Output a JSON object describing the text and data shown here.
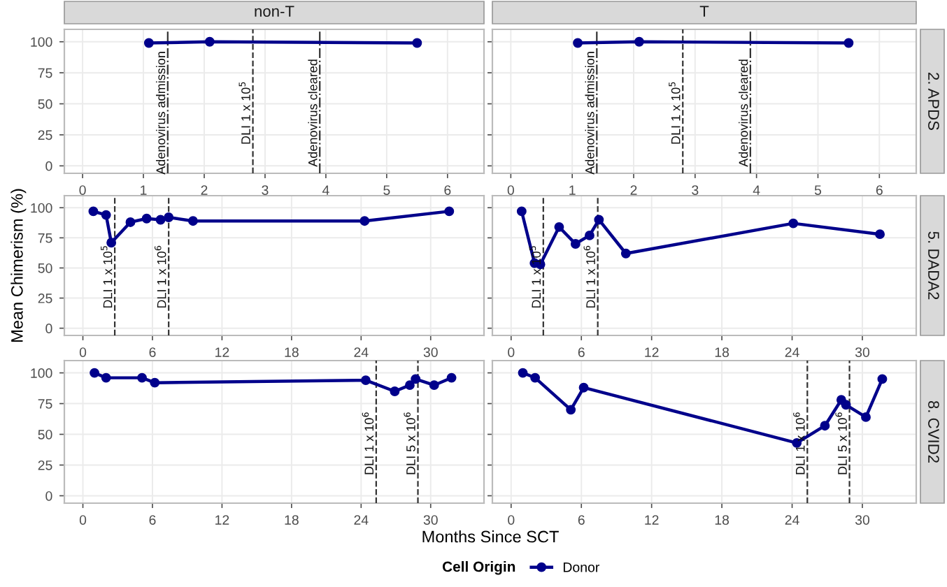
{
  "chart_data": [
    {
      "type": "line",
      "title": "non-T",
      "x": [
        1.09,
        2.09,
        5.5
      ],
      "series": [
        {
          "color": "#00008b",
          "values": [
            99,
            100,
            99
          ]
        }
      ],
      "xlim": [
        -0.3,
        6.6
      ],
      "xticks": [
        0,
        1,
        2,
        3,
        4,
        5,
        6
      ],
      "ylim": [
        -6,
        110
      ],
      "yticks": [
        0,
        25,
        50,
        75,
        100
      ],
      "grid": true,
      "marker": "circle",
      "line_style": "solid",
      "ref_lines": [
        {
          "axis": "x",
          "value": 1.4,
          "label": "Adenovirus admission",
          "line_style": "dashdot"
        },
        {
          "axis": "x",
          "value": 2.8,
          "label": "DLI 1 x 10$^{5}$",
          "line_style": "dashed"
        },
        {
          "axis": "x",
          "value": 3.9,
          "label": "Adenovirus cleared",
          "line_style": "dashdot"
        }
      ]
    },
    {
      "type": "line",
      "title": "T",
      "annotations": [
        "2. APDS"
      ],
      "x": [
        1.09,
        2.09,
        5.5
      ],
      "series": [
        {
          "color": "#00008b",
          "values": [
            99,
            100,
            99
          ]
        }
      ],
      "xlim": [
        -0.3,
        6.6
      ],
      "xticks": [
        0,
        1,
        2,
        3,
        4,
        5,
        6
      ],
      "ylim": [
        -6,
        110
      ],
      "yticks": [
        0,
        25,
        50,
        75,
        100
      ],
      "grid": true,
      "marker": "circle",
      "line_style": "solid",
      "tick_labels": "x",
      "ref_lines": [
        {
          "axis": "x",
          "value": 1.4,
          "label": "Adenovirus admission",
          "line_style": "dashdot"
        },
        {
          "axis": "x",
          "value": 2.8,
          "label": "DLI 1 x 10$^{5}$",
          "line_style": "dashed"
        },
        {
          "axis": "x",
          "value": 3.9,
          "label": "Adenovirus cleared",
          "line_style": "dashdot"
        }
      ]
    },
    {
      "type": "line",
      "ylabel": "Mean Chimerism (%)",
      "x": [
        0.9,
        2.0,
        2.45,
        4.1,
        5.5,
        6.7,
        7.4,
        9.5,
        24.3,
        31.6
      ],
      "series": [
        {
          "color": "#00008b",
          "values": [
            97,
            94,
            71,
            88,
            91,
            90,
            92,
            89,
            89,
            97
          ]
        }
      ],
      "xlim": [
        -1.6,
        34.6
      ],
      "xticks": [
        0,
        6,
        12,
        18,
        24,
        30
      ],
      "ylim": [
        -6,
        110
      ],
      "yticks": [
        0,
        25,
        50,
        75,
        100
      ],
      "grid": true,
      "marker": "circle",
      "line_style": "solid",
      "ref_lines": [
        {
          "axis": "x",
          "value": 2.75,
          "label": "DLI 1 x 10$^{5}$",
          "line_style": "dashed"
        },
        {
          "axis": "x",
          "value": 7.4,
          "label": "DLI 1 x 10$^{6}$",
          "line_style": "dashed"
        }
      ]
    },
    {
      "type": "line",
      "annotations": [
        "5. DADA2"
      ],
      "x": [
        0.9,
        2.0,
        2.5,
        4.1,
        5.5,
        6.7,
        7.5,
        9.8,
        24.1,
        31.5
      ],
      "series": [
        {
          "color": "#00008b",
          "values": [
            97,
            54,
            53,
            84,
            70,
            77,
            90,
            62,
            87,
            78
          ]
        }
      ],
      "xlim": [
        -1.6,
        34.6
      ],
      "xticks": [
        0,
        6,
        12,
        18,
        24,
        30
      ],
      "ylim": [
        -6,
        110
      ],
      "yticks": [
        0,
        25,
        50,
        75,
        100
      ],
      "grid": true,
      "marker": "circle",
      "line_style": "solid",
      "tick_labels": "x",
      "ref_lines": [
        {
          "axis": "x",
          "value": 2.75,
          "label": "DLI 1 x 10$^{5}$",
          "line_style": "dashed"
        },
        {
          "axis": "x",
          "value": 7.4,
          "label": "DLI 1 x 10$^{6}$",
          "line_style": "dashed"
        }
      ]
    },
    {
      "type": "line",
      "xlabel": "Months Since SCT",
      "legend_title": "Cell Origin",
      "legend": "bottom",
      "x": [
        1.0,
        2.0,
        5.1,
        6.2,
        24.4,
        26.9,
        28.2,
        28.7,
        30.3,
        31.8
      ],
      "series": [
        {
          "name": "Donor",
          "color": "#00008b",
          "values": [
            100,
            96,
            96,
            92,
            94,
            85,
            90,
            95,
            90,
            96
          ]
        }
      ],
      "xlim": [
        -1.6,
        34.6
      ],
      "xticks": [
        0,
        6,
        12,
        18,
        24,
        30
      ],
      "ylim": [
        -6,
        110
      ],
      "yticks": [
        0,
        25,
        50,
        75,
        100
      ],
      "grid": true,
      "marker": "circle",
      "line_style": "solid",
      "ref_lines": [
        {
          "axis": "x",
          "value": 25.3,
          "label": "DLI 1 x 10$^{6}$",
          "line_style": "dashed"
        },
        {
          "axis": "x",
          "value": 28.9,
          "label": "DLI 5 x 10$^{6}$",
          "line_style": "dashed"
        }
      ]
    },
    {
      "type": "line",
      "annotations": [
        "8. CVID2"
      ],
      "x": [
        1.0,
        2.05,
        5.1,
        6.2,
        24.4,
        26.8,
        28.2,
        28.6,
        30.3,
        31.7
      ],
      "series": [
        {
          "color": "#00008b",
          "values": [
            100,
            96,
            70,
            88,
            43,
            57,
            78,
            74,
            64,
            95
          ]
        }
      ],
      "xlim": [
        -1.6,
        34.6
      ],
      "xticks": [
        0,
        6,
        12,
        18,
        24,
        30
      ],
      "ylim": [
        -6,
        110
      ],
      "yticks": [
        0,
        25,
        50,
        75,
        100
      ],
      "grid": true,
      "marker": "circle",
      "line_style": "solid",
      "tick_labels": "x",
      "ref_lines": [
        {
          "axis": "x",
          "value": 25.3,
          "label": "DLI 1 x 10$^{6}$",
          "line_style": "dashed"
        },
        {
          "axis": "x",
          "value": 28.9,
          "label": "DLI 5 x 10$^{6}$",
          "line_style": "dashed"
        }
      ]
    }
  ]
}
